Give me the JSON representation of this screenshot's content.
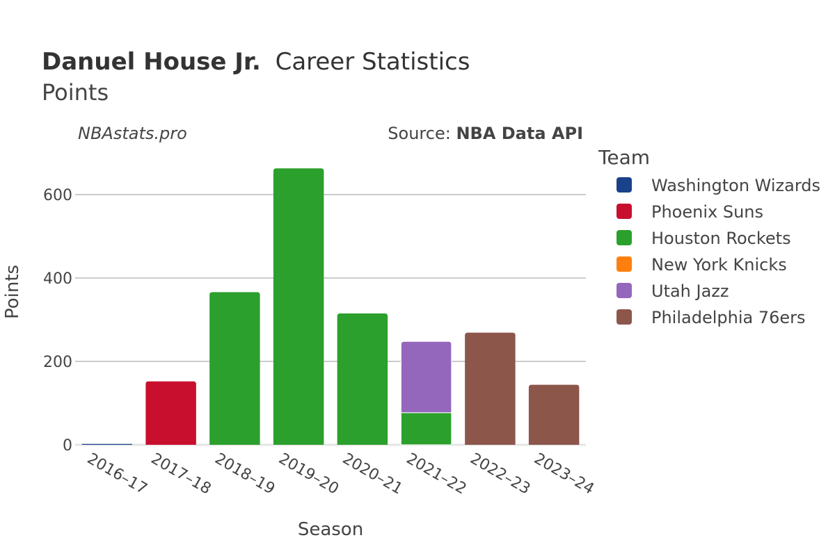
{
  "header": {
    "player_name": "Danuel House Jr.",
    "title_rest": "Career Statistics",
    "subtitle": "Points",
    "watermark": "NBAstats.pro",
    "source_prefix": "Source: ",
    "source_name": "NBA Data API"
  },
  "chart_data": {
    "type": "bar",
    "stacked": true,
    "xlabel": "Season",
    "ylabel": "Points",
    "ylim": [
      0,
      700
    ],
    "yticks": [
      0,
      200,
      400,
      600
    ],
    "grid": true,
    "legend_position": "right",
    "legend_title": "Team",
    "categories": [
      "2016–17",
      "2017–18",
      "2018–19",
      "2019–20",
      "2020–21",
      "2021–22",
      "2022–23",
      "2023–24"
    ],
    "series": [
      {
        "name": "Washington Wizards",
        "color": "#1a428a",
        "values": [
          2,
          0,
          0,
          0,
          0,
          0,
          0,
          0
        ]
      },
      {
        "name": "Phoenix Suns",
        "color": "#c8102e",
        "values": [
          0,
          152,
          0,
          0,
          0,
          0,
          0,
          0
        ]
      },
      {
        "name": "Houston Rockets",
        "color": "#2ca02c",
        "values": [
          0,
          0,
          366,
          663,
          315,
          77,
          0,
          0
        ]
      },
      {
        "name": "New York Knicks",
        "color": "#ff7f0e",
        "values": [
          0,
          0,
          0,
          0,
          0,
          0,
          0,
          0
        ]
      },
      {
        "name": "Utah Jazz",
        "color": "#9467bd",
        "values": [
          0,
          0,
          0,
          0,
          0,
          171,
          0,
          0
        ]
      },
      {
        "name": "Philadelphia 76ers",
        "color": "#8c564b",
        "values": [
          0,
          0,
          0,
          0,
          0,
          0,
          269,
          144
        ]
      }
    ]
  }
}
